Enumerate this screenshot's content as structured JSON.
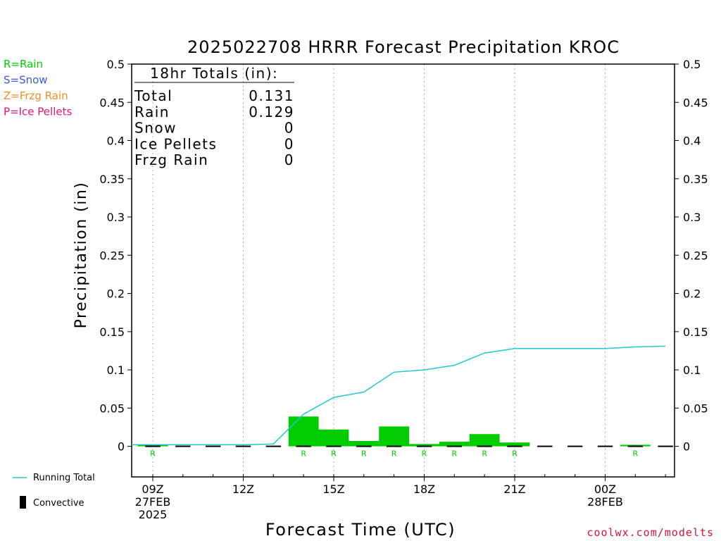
{
  "title": "2025022708 HRRR Forecast Precipitation KROC",
  "legend_types": [
    {
      "label": "R=Rain",
      "color": "#00cc00"
    },
    {
      "label": "S=Snow",
      "color": "#3b5bdb"
    },
    {
      "label": "Z=Frzg Rain",
      "color": "#f08c2a"
    },
    {
      "label": "P=Ice Pellets",
      "color": "#e0167c"
    }
  ],
  "totals_box": {
    "header": "18hr Totals (in):",
    "rows": [
      {
        "label": "Total",
        "value": "0.131"
      },
      {
        "label": "Rain",
        "value": "0.129"
      },
      {
        "label": "Snow",
        "value": "0"
      },
      {
        "label": "Ice Pellets",
        "value": "0"
      },
      {
        "label": "Frzg Rain",
        "value": "0"
      }
    ]
  },
  "bottom_legend": {
    "running_total_label": "Running Total",
    "convective_label": "Convective"
  },
  "credit": "coolwx.com/modelts",
  "colors": {
    "bar": "#00cc00",
    "running_total": "#1ec8d2",
    "axis": "#000000",
    "grid": "#aaaaaa",
    "rain_marker": "#00cc00",
    "credit": "#d4143c"
  },
  "chart_data": {
    "type": "bar",
    "xlabel": "Forecast Time (UTC)",
    "ylabel": "Precipitation (in)",
    "ylim": [
      -0.04,
      0.5
    ],
    "yticks": [
      "0",
      "0.05",
      "0.1",
      "0.15",
      "0.2",
      "0.25",
      "0.3",
      "0.35",
      "0.4",
      "0.45",
      "0.5"
    ],
    "ytick_values": [
      0,
      0.05,
      0.1,
      0.15,
      0.2,
      0.25,
      0.3,
      0.35,
      0.4,
      0.45,
      0.5
    ],
    "xlim_hours": [
      8.3,
      26.3
    ],
    "xticks": [
      {
        "hour": 9,
        "lines": [
          "09Z",
          "27FEB",
          "2025"
        ]
      },
      {
        "hour": 12,
        "lines": [
          "12Z"
        ]
      },
      {
        "hour": 15,
        "lines": [
          "15Z"
        ]
      },
      {
        "hour": 18,
        "lines": [
          "18Z"
        ]
      },
      {
        "hour": 21,
        "lines": [
          "21Z"
        ]
      },
      {
        "hour": 24,
        "lines": [
          "00Z",
          "28FEB"
        ]
      }
    ],
    "hours": [
      9,
      10,
      11,
      12,
      13,
      14,
      15,
      16,
      17,
      18,
      19,
      20,
      21,
      22,
      23,
      24,
      25,
      26
    ],
    "hourly_precip": [
      0.002,
      0,
      0,
      0,
      0,
      0.039,
      0.022,
      0.007,
      0.026,
      0.003,
      0.006,
      0.016,
      0.005,
      0,
      0,
      0,
      0.002,
      0
    ],
    "precip_type": [
      "R",
      "",
      "",
      "",
      "",
      "R",
      "R",
      "R",
      "R",
      "R",
      "R",
      "R",
      "R",
      "",
      "",
      "",
      "R",
      ""
    ],
    "running_total": [
      0.002,
      0.002,
      0.002,
      0.002,
      0.003,
      0.042,
      0.064,
      0.071,
      0.097,
      0.1,
      0.106,
      0.122,
      0.128,
      0.128,
      0.128,
      0.128,
      0.13,
      0.131
    ],
    "running_total_start": {
      "hour": 8.3,
      "value": 0.002
    },
    "convective": [
      0,
      0,
      0,
      0,
      0,
      0,
      0,
      0,
      0,
      0,
      0,
      0,
      0,
      0,
      0,
      0,
      0,
      0
    ],
    "series": [
      {
        "name": "Running Total"
      },
      {
        "name": "Convective"
      }
    ],
    "grid": true
  }
}
